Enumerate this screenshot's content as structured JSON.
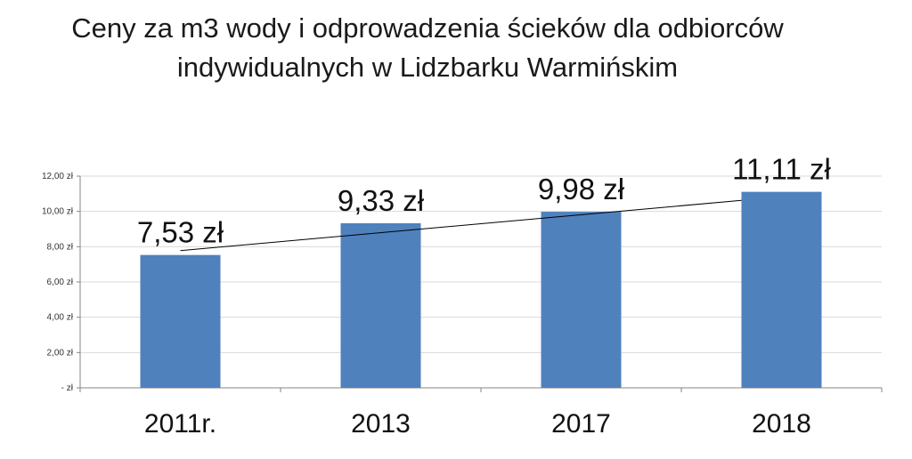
{
  "chart_data": {
    "type": "bar",
    "title_lines": [
      "Ceny za m3 wody i odprowadzenia ścieków dla odbiorców",
      "indywidualnych w Lidzbarku Warmińskim"
    ],
    "categories": [
      "2011r.",
      "2013",
      "2017",
      "2018"
    ],
    "values": [
      7.53,
      9.33,
      9.98,
      11.11
    ],
    "data_labels": [
      "7,53 zł",
      "9,33 zł",
      "9,98 zł",
      "11,11 zł"
    ],
    "y_tick_values": [
      0,
      2,
      4,
      6,
      8,
      10,
      12
    ],
    "y_tick_labels": [
      "-   zł",
      "2,00 zł",
      "4,00 zł",
      "6,00 zł",
      "8,00 zł",
      "10,00 zł",
      "12,00 zł"
    ],
    "ylim": [
      0,
      12
    ],
    "grid": true,
    "trendline": "linear",
    "legend": "none",
    "colors": {
      "bar": "#4F81BD",
      "grid": "#D9D9D9",
      "axis": "#868686",
      "trend": "#000000"
    }
  }
}
